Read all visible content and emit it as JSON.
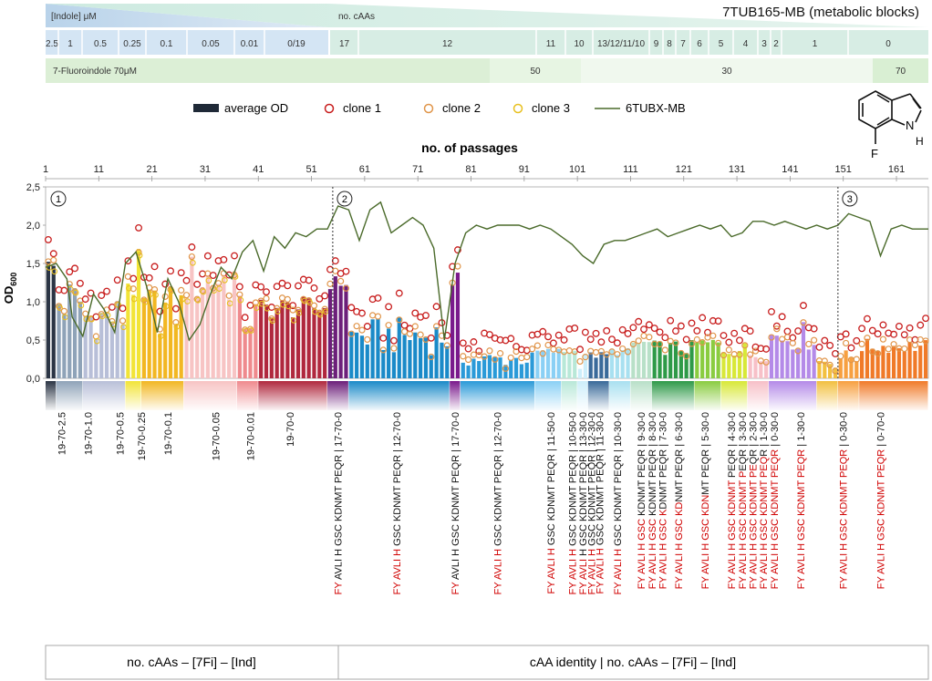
{
  "header": {
    "title": "7TUB165-MB (metabolic blocks)",
    "indole_label": "[Indole] μM",
    "ncaa_label": "no. cAAs",
    "indole_row": [
      "2.5",
      "1",
      "0.5",
      "0.25",
      "0.1",
      "0.05",
      "0.01",
      "0/19"
    ],
    "caa_row": [
      "17",
      "12",
      "11",
      "10",
      "13/12/11/10",
      "9",
      "8",
      "7",
      "6",
      "5",
      "4",
      "3",
      "2",
      "1",
      "0"
    ],
    "fi_row": [
      "7-Fluoroindole 70μM",
      "50",
      "30",
      "70"
    ]
  },
  "legend": [
    {
      "key": "avg",
      "label": "average OD",
      "color": "#1f2937"
    },
    {
      "key": "c1",
      "label": "clone 1",
      "color": "#c81e1e"
    },
    {
      "key": "c2",
      "label": "clone 2",
      "color": "#e0954a"
    },
    {
      "key": "c3",
      "label": "clone 3",
      "color": "#e8c020"
    },
    {
      "key": "ref",
      "label": "6TUBX-MB",
      "color": "#4a6a2a"
    }
  ],
  "molecule": {
    "atom_h": "H",
    "atom_n": "N",
    "atom_f": "F"
  },
  "chart_data": {
    "type": "bar",
    "title": "7TUB165-MB (metabolic blocks)",
    "xlabel": "no. of passages",
    "ylabel_main": "OD",
    "ylabel_sub": "600",
    "xlim": [
      1,
      167
    ],
    "ylim": [
      0,
      2.5
    ],
    "x_ticks": [
      1,
      11,
      21,
      31,
      41,
      51,
      61,
      71,
      81,
      91,
      101,
      111,
      121,
      131,
      141,
      151,
      161
    ],
    "y_ticks": [
      "0,0",
      "0,5",
      "1,0",
      "1,5",
      "2,0",
      "2,5"
    ],
    "y_tick_values": [
      0,
      0.5,
      1,
      1.5,
      2,
      2.5
    ],
    "phase_markers": [
      {
        "x": 55,
        "label": "②"
      },
      {
        "x": 150,
        "label": "③"
      }
    ],
    "phase_first": "①",
    "segments": [
      {
        "from": 1,
        "to": 3,
        "color": "#2b3545",
        "base": 1.45,
        "amp": 0.15
      },
      {
        "from": 3,
        "to": 8,
        "color": "#8fa3b8",
        "base": 1.0,
        "amp": 0.35
      },
      {
        "from": 8,
        "to": 16,
        "color": "#b8bfd8",
        "base": 0.8,
        "amp": 0.3
      },
      {
        "from": 16,
        "to": 19,
        "color": "#f2e437",
        "base": 1.3,
        "amp": 0.4
      },
      {
        "from": 19,
        "to": 27,
        "color": "#f2b722",
        "base": 0.9,
        "amp": 0.35
      },
      {
        "from": 27,
        "to": 37,
        "color": "#f7c4c4",
        "base": 1.3,
        "amp": 0.35
      },
      {
        "from": 37,
        "to": 41,
        "color": "#ef8a8e",
        "base": 0.8,
        "amp": 0.3
      },
      {
        "from": 41,
        "to": 54,
        "color": "#b0283e",
        "base": 0.92,
        "amp": 0.15
      },
      {
        "from": 54,
        "to": 58,
        "color": "#6c1f7a",
        "base": 1.25,
        "amp": 0.1
      },
      {
        "from": 58,
        "to": 77,
        "color": "#1a8ac8",
        "base": 0.55,
        "amp": 0.25
      },
      {
        "from": 77,
        "to": 79,
        "color": "#7a1a8c",
        "base": 0.9,
        "amp": 0.5
      },
      {
        "from": 79,
        "to": 93,
        "color": "#2a9ad8",
        "base": 0.25,
        "amp": 0.1
      },
      {
        "from": 93,
        "to": 98,
        "color": "#8ad0f5",
        "base": 0.35,
        "amp": 0.05
      },
      {
        "from": 98,
        "to": 101,
        "color": "#b8e8d8",
        "base": 0.35,
        "amp": 0.05
      },
      {
        "from": 101,
        "to": 103,
        "color": "#cdeefa",
        "base": 0.4,
        "amp": 0.3
      },
      {
        "from": 103,
        "to": 107,
        "color": "#3a6a9a",
        "base": 0.3,
        "amp": 0.05
      },
      {
        "from": 107,
        "to": 111,
        "color": "#a8e0f0",
        "base": 0.35,
        "amp": 0.05
      },
      {
        "from": 111,
        "to": 115,
        "color": "#b8e0c8",
        "base": 0.45,
        "amp": 0.1
      },
      {
        "from": 115,
        "to": 123,
        "color": "#2e9a48",
        "base": 0.4,
        "amp": 0.1
      },
      {
        "from": 123,
        "to": 128,
        "color": "#8acc40",
        "base": 0.45,
        "amp": 0.1
      },
      {
        "from": 128,
        "to": 133,
        "color": "#d8e838",
        "base": 0.38,
        "amp": 0.1
      },
      {
        "from": 133,
        "to": 137,
        "color": "#f7c0c8",
        "base": 0.32,
        "amp": 0.1
      },
      {
        "from": 137,
        "to": 146,
        "color": "#b48ae8",
        "base": 0.55,
        "amp": 0.2
      },
      {
        "from": 146,
        "to": 150,
        "color": "#f2c040",
        "base": 0.22,
        "amp": 0.1
      },
      {
        "from": 150,
        "to": 154,
        "color": "#f7a040",
        "base": 0.28,
        "amp": 0.1
      },
      {
        "from": 154,
        "to": 167,
        "color": "#f07a28",
        "base": 0.42,
        "amp": 0.1
      }
    ],
    "band_colors": [
      "#2b3545",
      "#8fa3b8",
      "#c8cde8",
      "#f2e437",
      "#f2b722",
      "#f7d0d0",
      "#e8707c",
      "#b0283e",
      "#6c1f7a",
      "#1a8ac8",
      "#7a1a8c",
      "#2a9ad8",
      "#8ad0f5",
      "#b8e8d8",
      "#cdeefa",
      "#3a6a9a",
      "#a8e0f0",
      "#9fd8b0",
      "#2e9a48",
      "#6cc860",
      "#8acc40",
      "#d8e838",
      "#f7c0c8",
      "#c8a8f0",
      "#b48ae8",
      "#f2c040",
      "#f07a28"
    ],
    "reference_line": [
      [
        1,
        1.45
      ],
      [
        3,
        1.5
      ],
      [
        5,
        1.3
      ],
      [
        6,
        0.8
      ],
      [
        8,
        0.55
      ],
      [
        10,
        1.1
      ],
      [
        12,
        0.9
      ],
      [
        14,
        0.6
      ],
      [
        16,
        1.5
      ],
      [
        18,
        1.65
      ],
      [
        20,
        1.2
      ],
      [
        22,
        0.6
      ],
      [
        24,
        1.3
      ],
      [
        26,
        1.0
      ],
      [
        28,
        0.5
      ],
      [
        30,
        0.7
      ],
      [
        32,
        1.1
      ],
      [
        34,
        1.45
      ],
      [
        36,
        1.3
      ],
      [
        38,
        1.65
      ],
      [
        40,
        1.8
      ],
      [
        42,
        1.4
      ],
      [
        44,
        1.85
      ],
      [
        46,
        1.7
      ],
      [
        48,
        1.9
      ],
      [
        50,
        1.85
      ],
      [
        52,
        1.95
      ],
      [
        54,
        1.95
      ],
      [
        56,
        2.25
      ],
      [
        58,
        2.2
      ],
      [
        60,
        1.8
      ],
      [
        62,
        2.2
      ],
      [
        64,
        2.3
      ],
      [
        66,
        1.9
      ],
      [
        68,
        2.0
      ],
      [
        70,
        2.1
      ],
      [
        72,
        2.0
      ],
      [
        74,
        1.7
      ],
      [
        76,
        0.5
      ],
      [
        78,
        1.5
      ],
      [
        80,
        1.9
      ],
      [
        82,
        2.0
      ],
      [
        84,
        1.95
      ],
      [
        86,
        2.0
      ],
      [
        88,
        2.0
      ],
      [
        90,
        2.0
      ],
      [
        92,
        1.95
      ],
      [
        94,
        2.0
      ],
      [
        96,
        1.95
      ],
      [
        98,
        1.85
      ],
      [
        100,
        1.75
      ],
      [
        102,
        1.6
      ],
      [
        104,
        1.5
      ],
      [
        106,
        1.75
      ],
      [
        108,
        1.8
      ],
      [
        110,
        1.8
      ],
      [
        112,
        1.85
      ],
      [
        114,
        1.9
      ],
      [
        116,
        1.95
      ],
      [
        118,
        1.85
      ],
      [
        120,
        1.9
      ],
      [
        122,
        1.95
      ],
      [
        124,
        2.0
      ],
      [
        126,
        1.95
      ],
      [
        128,
        2.0
      ],
      [
        130,
        1.85
      ],
      [
        132,
        1.9
      ],
      [
        134,
        2.05
      ],
      [
        136,
        2.05
      ],
      [
        138,
        2.0
      ],
      [
        140,
        2.05
      ],
      [
        142,
        2.0
      ],
      [
        144,
        1.95
      ],
      [
        146,
        2.0
      ],
      [
        148,
        1.95
      ],
      [
        150,
        2.0
      ],
      [
        152,
        2.15
      ],
      [
        154,
        2.1
      ],
      [
        156,
        2.05
      ],
      [
        158,
        1.6
      ],
      [
        160,
        1.95
      ],
      [
        162,
        2.0
      ],
      [
        164,
        1.95
      ],
      [
        167,
        1.95
      ]
    ]
  },
  "condition_labels": [
    {
      "x": 4,
      "plain": "19-70-2.5"
    },
    {
      "x": 9,
      "plain": "19-70-1.0"
    },
    {
      "x": 15,
      "plain": "19-70-0.5"
    },
    {
      "x": 19,
      "plain": "19-70-0.25"
    },
    {
      "x": 24,
      "plain": "19-70-0.1"
    },
    {
      "x": 33,
      "plain": "19-70-0.05"
    },
    {
      "x": 39.5,
      "plain": "19-70-0.01"
    },
    {
      "x": 47,
      "plain": "19-70-0"
    },
    {
      "x": 56,
      "red": "FY",
      "black": " AVLI H GSC KDNMT PEQR | 17-70-0"
    },
    {
      "x": 67,
      "red": "FY AVLI H",
      "black": " GSC KDNMT PEQR | 12-70-0"
    },
    {
      "x": 78,
      "red": "FY",
      "black": " AVLI H GSC KDNMT PEQR | 17-70-0"
    },
    {
      "x": 86,
      "red": "FY AVLI H",
      "black": " GSC KDNMT PEQR | 12-70-0"
    },
    {
      "x": 96,
      "red": "FY AVLI H",
      "black": " GSC KDNMT PEQR | 11-50-0"
    },
    {
      "x": 100,
      "red": "FY AVLI H",
      "black": " GSC KDNMT PEQR | 10-50-0"
    },
    {
      "x": 102,
      "red": "FY AVLI",
      "black": " H GSC KDNMT PEQR | 13-30-0"
    },
    {
      "x": 103.6,
      "red": "FY AVLI H",
      "black": " GSC KDNMT PEQR | 12-30-0"
    },
    {
      "x": 105.2,
      "red": "FY AVLI H",
      "black": " GSC KDNMT PEQR | 11-30-0"
    },
    {
      "x": 108.5,
      "red": "FY AVLI H",
      "black": " GSC KDNMT PEQR | 10-30-0"
    },
    {
      "x": 113,
      "red": "FY AVLI H GSC",
      "black": " KDNMT PEQR | 9-30-0"
    },
    {
      "x": 115,
      "red": "FY AVLI H GSC",
      "black": " KDNMT PEQR | 8-30-0"
    },
    {
      "x": 117,
      "red": "FY AVLI H GSC K",
      "black": "DNMT PEQR | 7-30-0"
    },
    {
      "x": 120,
      "red": "FY AVLI H GSC KD",
      "black": "NMT PEQR | 6-30-0"
    },
    {
      "x": 125,
      "red": "FY AVLI H GSC KDN",
      "black": "MT PEQR | 5-30-0"
    },
    {
      "x": 130,
      "red": "FY AVLI H GSC KDNMT",
      "black": " PEQR | 4-30-0"
    },
    {
      "x": 132,
      "red": "FY AVLI H GSC KDNMT P",
      "black": "EQR | 3-30-0"
    },
    {
      "x": 134,
      "red": "FY AVLI H GSC KDNMT PE",
      "black": "QR | 2-30-0"
    },
    {
      "x": 136,
      "red": "FY AVLI H GSC KDNMT PEQ",
      "black": "R | 1-30-0"
    },
    {
      "x": 138,
      "red": "FY AVLI H GSC KDNMT PEQR",
      "black": " | 0-30-0"
    },
    {
      "x": 143,
      "red": "FY AVLI H GSC KDNMT PEQR",
      "black": " | 1-30-0"
    },
    {
      "x": 151,
      "red": "FY AVLI H GSC KDNMT PEQR",
      "black": " | 0-30-0"
    },
    {
      "x": 158,
      "red": "FY AVLI H GSC KDNMT PEQR",
      "black": " | 0-70-0"
    }
  ],
  "footer": {
    "left": "no. cAAs – [7Fi] – [Ind]",
    "right": "cAA identity | no. cAAs – [7Fi] – [Ind]"
  }
}
